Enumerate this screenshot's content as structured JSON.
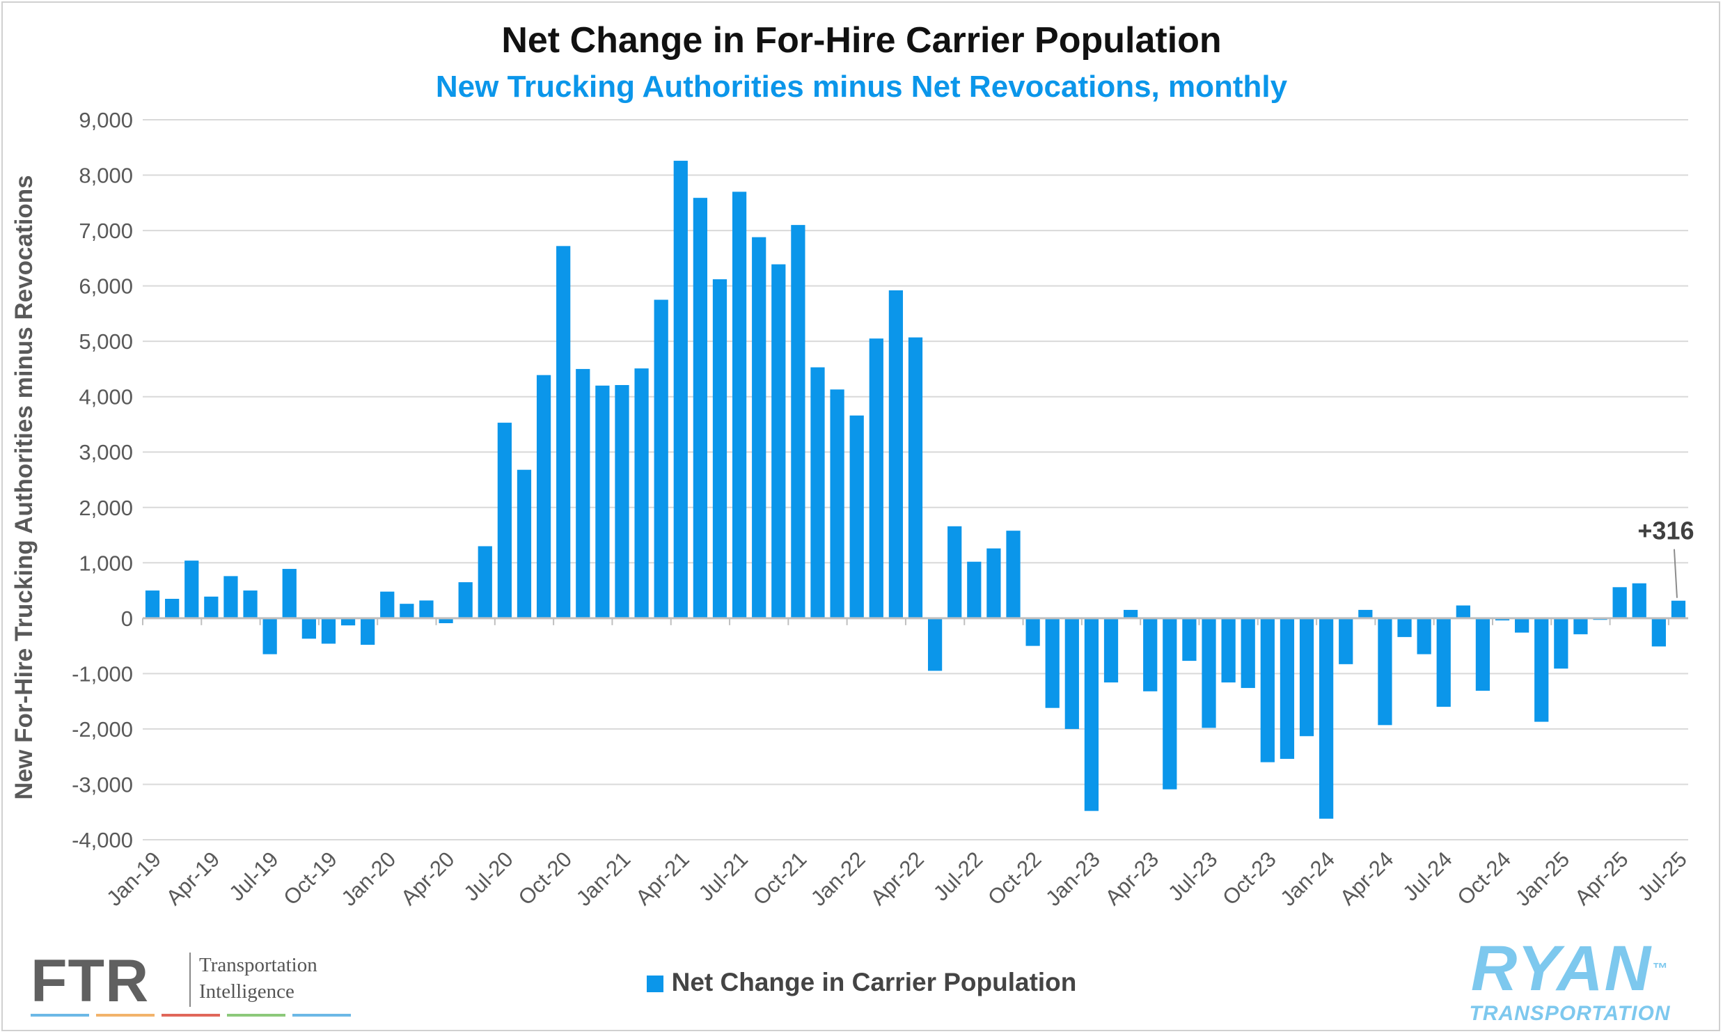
{
  "colors": {
    "bar": "#0b96ea",
    "subtitle": "#0b96ea",
    "grid": "#d9d9d9",
    "axis_text": "#595959",
    "ryan": "#7dc8ee",
    "ftr_stripes": [
      "#6cb8e6",
      "#f2b36b",
      "#e0675a",
      "#8cc97a",
      "#6cb8e6"
    ]
  },
  "chart_data": {
    "type": "bar",
    "title": "Net Change in For-Hire Carrier Population",
    "subtitle": "New Trucking Authorities minus Net Revocations, monthly",
    "xlabel": "",
    "ylabel": "New For-Hire Trucking Authorities minus Revocations",
    "ylim": [
      -4000,
      9000
    ],
    "yticks": [
      "-4,000",
      "-3,000",
      "-2,000",
      "-1,000",
      "0",
      "1,000",
      "2,000",
      "3,000",
      "4,000",
      "5,000",
      "6,000",
      "7,000",
      "8,000",
      "9,000"
    ],
    "grid": true,
    "legend_position": "bottom",
    "categories": [
      "Jan-19",
      "Feb-19",
      "Mar-19",
      "Apr-19",
      "May-19",
      "Jun-19",
      "Jul-19",
      "Aug-19",
      "Sep-19",
      "Oct-19",
      "Nov-19",
      "Dec-19",
      "Jan-20",
      "Feb-20",
      "Mar-20",
      "Apr-20",
      "May-20",
      "Jun-20",
      "Jul-20",
      "Aug-20",
      "Sep-20",
      "Oct-20",
      "Nov-20",
      "Dec-20",
      "Jan-21",
      "Feb-21",
      "Mar-21",
      "Apr-21",
      "May-21",
      "Jun-21",
      "Jul-21",
      "Aug-21",
      "Sep-21",
      "Oct-21",
      "Nov-21",
      "Dec-21",
      "Jan-22",
      "Feb-22",
      "Mar-22",
      "Apr-22",
      "May-22",
      "Jun-22",
      "Jul-22",
      "Aug-22",
      "Sep-22",
      "Oct-22",
      "Nov-22",
      "Dec-22",
      "Jan-23",
      "Feb-23",
      "Mar-23",
      "Apr-23",
      "May-23",
      "Jun-23",
      "Jul-23",
      "Aug-23",
      "Sep-23",
      "Oct-23",
      "Nov-23",
      "Dec-23",
      "Jan-24",
      "Feb-24",
      "Mar-24",
      "Apr-24",
      "May-24",
      "Jun-24",
      "Jul-24",
      "Aug-24",
      "Sep-24",
      "Oct-24",
      "Nov-24",
      "Dec-24",
      "Jan-25",
      "Feb-25",
      "Mar-25",
      "Apr-25",
      "May-25",
      "Jun-25",
      "Jul-25"
    ],
    "x_tick_labels": [
      "Jan-19",
      "Apr-19",
      "Jul-19",
      "Oct-19",
      "Jan-20",
      "Apr-20",
      "Jul-20",
      "Oct-20",
      "Jan-21",
      "Apr-21",
      "Jul-21",
      "Oct-21",
      "Jan-22",
      "Apr-22",
      "Jul-22",
      "Oct-22",
      "Jan-23",
      "Apr-23",
      "Jul-23",
      "Oct-23",
      "Jan-24",
      "Apr-24",
      "Jul-24",
      "Oct-24",
      "Jan-25",
      "Apr-25",
      "Jul-25"
    ],
    "series": [
      {
        "name": "Net Change in Carrier Population",
        "values": [
          500,
          350,
          1040,
          390,
          760,
          500,
          -650,
          890,
          -370,
          -460,
          -130,
          -480,
          480,
          260,
          320,
          -90,
          650,
          1300,
          3530,
          2680,
          4390,
          6720,
          4500,
          4200,
          4210,
          4510,
          5750,
          8260,
          7590,
          6120,
          7700,
          6880,
          6390,
          7100,
          4530,
          4130,
          3660,
          5050,
          5920,
          5070,
          -950,
          1660,
          1020,
          1260,
          1580,
          -500,
          -1620,
          -2000,
          -3480,
          -1160,
          150,
          -1320,
          -3090,
          -770,
          -1980,
          -1160,
          -1260,
          -2600,
          -2540,
          -2130,
          -3620,
          -830,
          150,
          -1930,
          -340,
          -650,
          -1600,
          230,
          -1310,
          -40,
          -260,
          -1870,
          -910,
          -290,
          -30,
          560,
          630,
          -510,
          316
        ]
      }
    ],
    "annotations": [
      {
        "text": "+316",
        "target": "Jul-25"
      }
    ]
  },
  "branding": {
    "ftr_letters": "FTR",
    "ftr_tagline_1": "Transportation",
    "ftr_tagline_2": "Intelligence",
    "ryan_main": "RYAN",
    "ryan_tm": "™",
    "ryan_sub": "TRANSPORTATION"
  }
}
